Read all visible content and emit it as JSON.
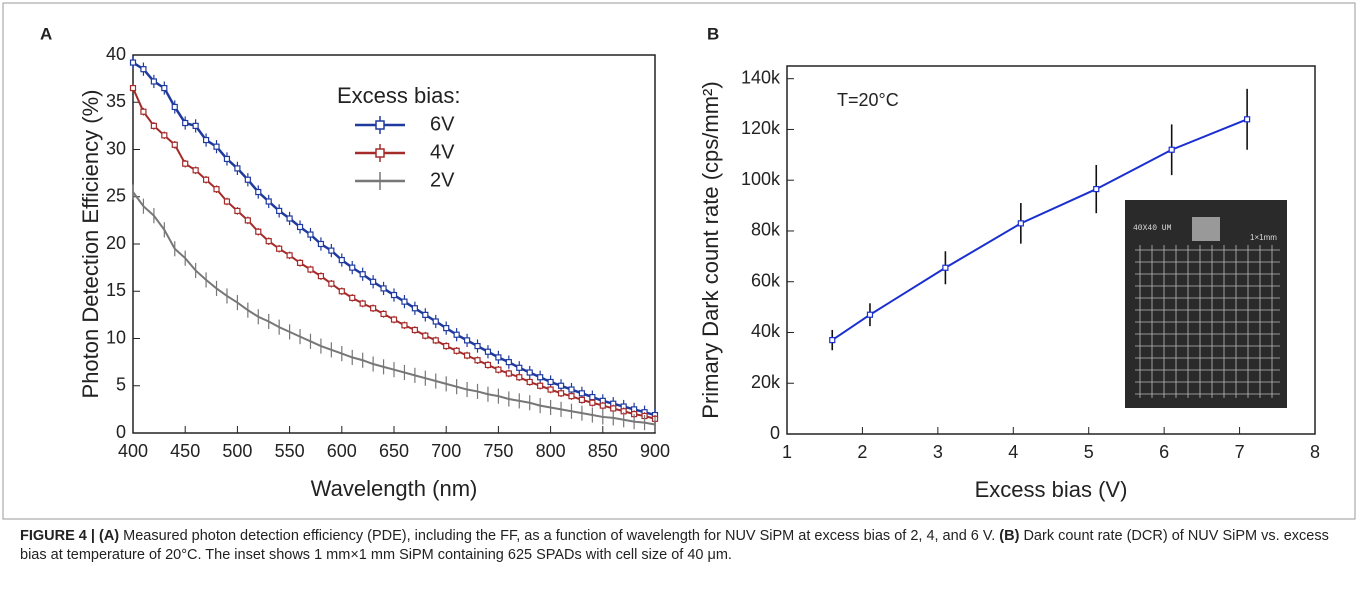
{
  "chart_data": [
    {
      "type": "line",
      "label": "A",
      "x_label": "Wavelength (nm)",
      "y_label": "Photon Detection Efficiency (%)",
      "legend_title": "Excess bias:",
      "legend": "upper right",
      "x": [
        400,
        410,
        420,
        430,
        440,
        450,
        460,
        470,
        480,
        490,
        500,
        510,
        520,
        530,
        540,
        550,
        560,
        570,
        580,
        590,
        600,
        610,
        620,
        630,
        640,
        650,
        660,
        670,
        680,
        690,
        700,
        710,
        720,
        730,
        740,
        750,
        760,
        770,
        780,
        790,
        800,
        810,
        820,
        830,
        840,
        850,
        860,
        870,
        880,
        890,
        900
      ],
      "series": [
        {
          "name": "6V",
          "color": "#1f3a9e",
          "marker": "circle",
          "error": 0.7,
          "values": [
            39.2,
            38.5,
            37.2,
            36.5,
            34.5,
            32.8,
            32.5,
            31,
            30.3,
            29,
            28,
            26.8,
            25.5,
            24.5,
            23.5,
            22.7,
            21.8,
            21,
            20,
            19.3,
            18.3,
            17.5,
            16.8,
            16,
            15.3,
            14.6,
            13.9,
            13.2,
            12.5,
            11.8,
            11.1,
            10.4,
            9.8,
            9.2,
            8.6,
            8,
            7.5,
            6.9,
            6.4,
            5.9,
            5.4,
            5,
            4.6,
            4.2,
            3.8,
            3.4,
            3.1,
            2.8,
            2.5,
            2.2,
            1.9
          ]
        },
        {
          "name": "4V",
          "color": "#a52a2a",
          "marker": "square",
          "error": 0.4,
          "values": [
            36.5,
            34,
            32.5,
            31.5,
            30.5,
            28.5,
            27.8,
            26.8,
            25.8,
            24.5,
            23.5,
            22.5,
            21.3,
            20.3,
            19.5,
            18.8,
            18,
            17.3,
            16.6,
            15.8,
            15,
            14.3,
            13.7,
            13.2,
            12.6,
            12,
            11.4,
            10.9,
            10.3,
            9.8,
            9.2,
            8.7,
            8.2,
            7.7,
            7.2,
            6.7,
            6.3,
            5.9,
            5.4,
            5,
            4.6,
            4.2,
            3.9,
            3.5,
            3.2,
            2.9,
            2.6,
            2.3,
            2,
            1.8,
            1.5
          ]
        },
        {
          "name": "2V",
          "color": "#777777",
          "marker": "none",
          "error": 0.8,
          "values": [
            25.5,
            24,
            23,
            21.5,
            19.5,
            18.5,
            17.2,
            16.2,
            15.3,
            14.5,
            13.8,
            13,
            12.3,
            11.8,
            11.2,
            10.7,
            10.2,
            9.7,
            9.2,
            8.8,
            8.4,
            8,
            7.7,
            7.3,
            7,
            6.7,
            6.4,
            6.1,
            5.8,
            5.5,
            5.2,
            4.9,
            4.6,
            4.4,
            4.1,
            3.9,
            3.6,
            3.4,
            3.2,
            2.9,
            2.7,
            2.5,
            2.3,
            2.1,
            1.9,
            1.7,
            1.6,
            1.4,
            1.2,
            1.1,
            0.9
          ]
        }
      ],
      "xlim": [
        400,
        900
      ],
      "xticks": [
        400,
        450,
        500,
        550,
        600,
        650,
        700,
        750,
        800,
        850,
        900
      ],
      "ylim": [
        0,
        40
      ],
      "yticks": [
        0,
        5,
        10,
        15,
        20,
        25,
        30,
        35,
        40
      ]
    },
    {
      "type": "line",
      "label": "B",
      "x_label": "Excess bias (V)",
      "y_label": "Primary Dark count rate  (cps/mm²)",
      "annotation": "T=20°C",
      "inset_labels": [
        "40X40 UM",
        "1×1mm"
      ],
      "x": [
        1.6,
        2.1,
        3.1,
        4.1,
        5.1,
        6.1,
        7.1
      ],
      "series": [
        {
          "color": "#1a2fd0",
          "marker": "square",
          "values": [
            37000,
            47000,
            65500,
            83000,
            96500,
            112000,
            124000
          ],
          "errors": [
            4000,
            4500,
            6500,
            8000,
            9500,
            10000,
            12000
          ]
        }
      ],
      "xlim": [
        1,
        8
      ],
      "xticks": [
        1,
        2,
        3,
        4,
        5,
        6,
        7,
        8
      ],
      "ylim": [
        0,
        145000
      ],
      "yticks": [
        0,
        {
          "value": 20000,
          "label": "20k"
        },
        {
          "value": 40000,
          "label": "40k"
        },
        {
          "value": 60000,
          "label": "60k"
        },
        {
          "value": 80000,
          "label": "80k"
        },
        {
          "value": 100000,
          "label": "100k"
        },
        {
          "value": 120000,
          "label": "120k"
        },
        {
          "value": 140000,
          "label": "140k"
        }
      ]
    }
  ],
  "caption": [
    {
      "text": "FIGURE 4 | (A)",
      "bold": true
    },
    {
      "text": " Measured photon detection efficiency (PDE), including the FF, as a function of wavelength for NUV SiPM at excess bias of 2, 4, and 6 V. ",
      "bold": false
    },
    {
      "text": "(B)",
      "bold": true
    },
    {
      "text": " Dark count rate (DCR) of NUV SiPM vs. excess bias at temperature of 20°C. The inset shows 1 mm×1 mm SiPM containing 625 SPADs with cell size of 40 μm.",
      "bold": false
    }
  ]
}
